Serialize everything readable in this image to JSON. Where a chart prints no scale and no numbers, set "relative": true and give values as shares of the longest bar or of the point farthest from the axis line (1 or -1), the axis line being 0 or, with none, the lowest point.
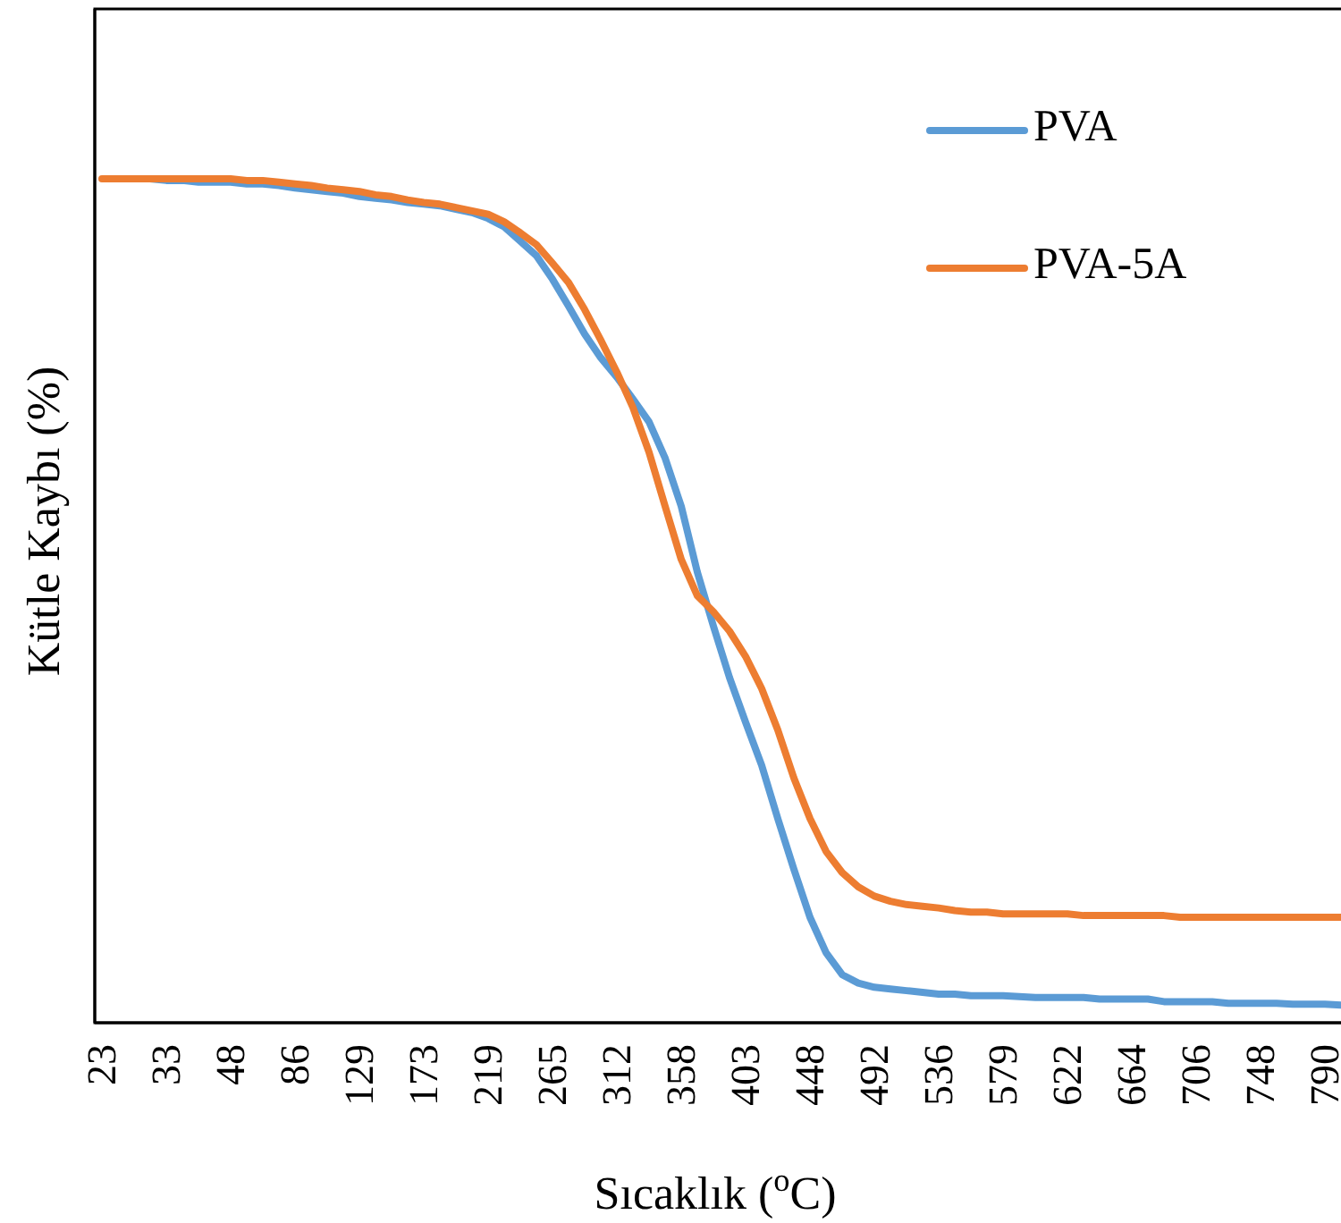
{
  "chart_data": {
    "type": "line",
    "relative": true,
    "xlabel": "Sıcaklık ($^{o}$C)",
    "ylabel": "Kütle Kaybı (%)",
    "legend": "top right",
    "categories": [
      "23",
      null,
      null,
      null,
      "33",
      null,
      null,
      null,
      "48",
      null,
      null,
      null,
      "86",
      null,
      null,
      null,
      "129",
      null,
      null,
      null,
      "173",
      null,
      null,
      null,
      "219",
      null,
      null,
      null,
      "265",
      null,
      null,
      null,
      "312",
      null,
      null,
      null,
      "358",
      null,
      null,
      null,
      "403",
      null,
      null,
      null,
      "448",
      null,
      null,
      null,
      "492",
      null,
      null,
      null,
      "536",
      null,
      null,
      null,
      "579",
      null,
      null,
      null,
      "622",
      null,
      null,
      null,
      "664",
      null,
      null,
      null,
      "706",
      null,
      null,
      null,
      "748",
      null,
      null,
      null,
      "790",
      null
    ],
    "series": [
      {
        "name": "PVA",
        "color": "#5b9bd5",
        "values": [
          null,
          null,
          null,
          1,
          0.998,
          0.998,
          0.996,
          0.996,
          0.996,
          0.994,
          0.994,
          0.992,
          0.989,
          0.987,
          0.985,
          0.983,
          0.979,
          0.977,
          0.975,
          0.972,
          0.97,
          0.968,
          0.964,
          0.96,
          0.953,
          0.943,
          0.926,
          0.909,
          0.881,
          0.849,
          0.816,
          0.788,
          0.765,
          0.739,
          0.712,
          0.669,
          0.612,
          0.534,
          0.47,
          0.409,
          0.356,
          0.305,
          0.242,
          0.182,
          0.125,
          0.083,
          0.057,
          0.047,
          0.042,
          0.04,
          0.038,
          0.036,
          0.034,
          0.034,
          0.032,
          0.032,
          0.032,
          0.031,
          0.03,
          0.03,
          0.03,
          0.03,
          0.028,
          0.028,
          0.028,
          0.028,
          0.025,
          0.025,
          0.025,
          0.025,
          0.023,
          0.023,
          0.023,
          0.023,
          0.022,
          0.022,
          0.022,
          0.021
        ]
      },
      {
        "name": "PVA-5A",
        "color": "#ed7d31",
        "values": [
          1,
          1,
          1,
          1,
          1,
          1,
          1,
          1,
          1,
          0.998,
          0.998,
          0.996,
          0.994,
          0.992,
          0.989,
          0.987,
          0.985,
          0.981,
          0.979,
          0.975,
          0.972,
          0.97,
          0.966,
          0.962,
          0.958,
          0.949,
          0.936,
          0.922,
          0.9,
          0.877,
          0.845,
          0.809,
          0.771,
          0.729,
          0.676,
          0.612,
          0.549,
          0.506,
          0.487,
          0.464,
          0.434,
          0.396,
          0.347,
          0.29,
          0.242,
          0.203,
          0.178,
          0.161,
          0.15,
          0.144,
          0.14,
          0.138,
          0.136,
          0.133,
          0.131,
          0.131,
          0.129,
          0.129,
          0.129,
          0.129,
          0.129,
          0.127,
          0.127,
          0.127,
          0.127,
          0.127,
          0.127,
          0.125,
          0.125,
          0.125,
          0.125,
          0.125,
          0.125,
          0.125,
          0.125,
          0.125,
          0.125,
          0.125
        ]
      }
    ]
  }
}
